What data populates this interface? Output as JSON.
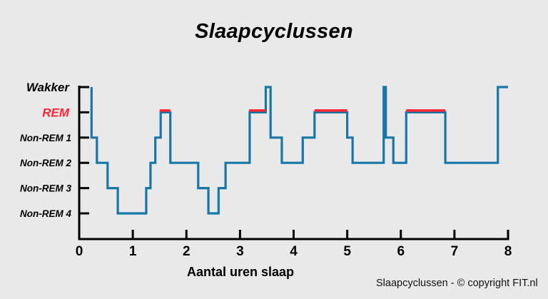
{
  "chart_data": {
    "type": "line",
    "title": "Slaapcyclussen",
    "xlabel": "Aantal uren slaap",
    "ylabel": "",
    "xlim": [
      0,
      8
    ],
    "x_ticks": [
      "0",
      "1",
      "2",
      "3",
      "4",
      "5",
      "6",
      "7",
      "8"
    ],
    "y_categories": [
      "Non-REM 4",
      "Non-REM 3",
      "Non-REM 2",
      "Non-REM 1",
      "REM",
      "Wakker"
    ],
    "highlight_category": "REM",
    "line_style": "step",
    "series": [
      {
        "points": [
          {
            "x": 0.23,
            "stage": "Wakker"
          },
          {
            "x": 0.23,
            "stage": "Non-REM 1"
          },
          {
            "x": 0.33,
            "stage": "Non-REM 2"
          },
          {
            "x": 0.53,
            "stage": "Non-REM 3"
          },
          {
            "x": 0.72,
            "stage": "Non-REM 4"
          },
          {
            "x": 1.25,
            "stage": "Non-REM 3"
          },
          {
            "x": 1.33,
            "stage": "Non-REM 2"
          },
          {
            "x": 1.42,
            "stage": "Non-REM 1"
          },
          {
            "x": 1.52,
            "stage": "REM"
          },
          {
            "x": 1.7,
            "stage": "Non-REM 2"
          },
          {
            "x": 2.22,
            "stage": "Non-REM 3"
          },
          {
            "x": 2.41,
            "stage": "Non-REM 4"
          },
          {
            "x": 2.6,
            "stage": "Non-REM 3"
          },
          {
            "x": 2.73,
            "stage": "Non-REM 2"
          },
          {
            "x": 3.18,
            "stage": "REM"
          },
          {
            "x": 3.48,
            "stage": "Wakker"
          },
          {
            "x": 3.57,
            "stage": "Non-REM 1"
          },
          {
            "x": 3.78,
            "stage": "Non-REM 2"
          },
          {
            "x": 4.17,
            "stage": "Non-REM 1"
          },
          {
            "x": 4.39,
            "stage": "REM"
          },
          {
            "x": 5.0,
            "stage": "Non-REM 1"
          },
          {
            "x": 5.1,
            "stage": "Non-REM 2"
          },
          {
            "x": 5.68,
            "stage": "Wakker"
          },
          {
            "x": 5.72,
            "stage": "Non-REM 1"
          },
          {
            "x": 5.86,
            "stage": "Non-REM 2"
          },
          {
            "x": 6.1,
            "stage": "REM"
          },
          {
            "x": 6.83,
            "stage": "Non-REM 2"
          },
          {
            "x": 7.81,
            "stage": "Wakker"
          },
          {
            "x": 8.0,
            "stage": "Wakker"
          }
        ]
      }
    ],
    "rem_highlights": [
      [
        1.5,
        1.7
      ],
      [
        3.17,
        3.48
      ],
      [
        4.39,
        5.0
      ],
      [
        6.1,
        6.83
      ]
    ],
    "grid": false,
    "colors": {
      "line": "#1677a8",
      "rem": "#ff2633",
      "axis": "#000000",
      "rem_label": "#ff2633"
    }
  },
  "credit": "Slaapcyclussen - © copyright FIT.nl"
}
